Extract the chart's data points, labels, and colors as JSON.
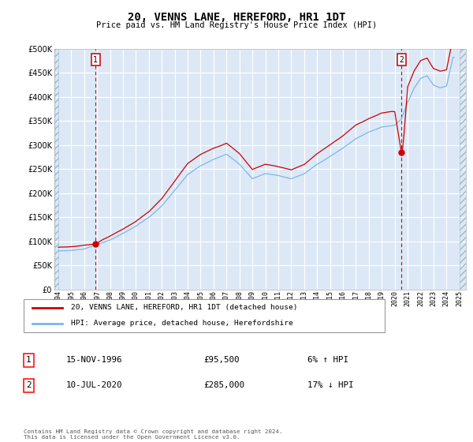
{
  "title": "20, VENNS LANE, HEREFORD, HR1 1DT",
  "subtitle": "Price paid vs. HM Land Registry's House Price Index (HPI)",
  "ylim": [
    0,
    500000
  ],
  "yticks": [
    0,
    50000,
    100000,
    150000,
    200000,
    250000,
    300000,
    350000,
    400000,
    450000,
    500000
  ],
  "sale1": {
    "date_num": 1996.88,
    "price": 95500,
    "label": "1"
  },
  "sale2": {
    "date_num": 2020.52,
    "price": 285000,
    "label": "2"
  },
  "hpi_color": "#7ab8e8",
  "price_color": "#cc0000",
  "background_color": "#dce8f5",
  "hatch_color": "#c8d8e8",
  "grid_color": "#b0c4d8",
  "legend_label_price": "20, VENNS LANE, HEREFORD, HR1 1DT (detached house)",
  "legend_label_hpi": "HPI: Average price, detached house, Herefordshire",
  "table_row1": [
    "1",
    "15-NOV-1996",
    "£95,500",
    "6% ↑ HPI"
  ],
  "table_row2": [
    "2",
    "10-JUL-2020",
    "£285,000",
    "17% ↓ HPI"
  ],
  "footer": "Contains HM Land Registry data © Crown copyright and database right 2024.\nThis data is licensed under the Open Government Licence v3.0.",
  "xlim_left": 1993.7,
  "xlim_right": 2025.5,
  "hatch_right_start": 2025.0
}
